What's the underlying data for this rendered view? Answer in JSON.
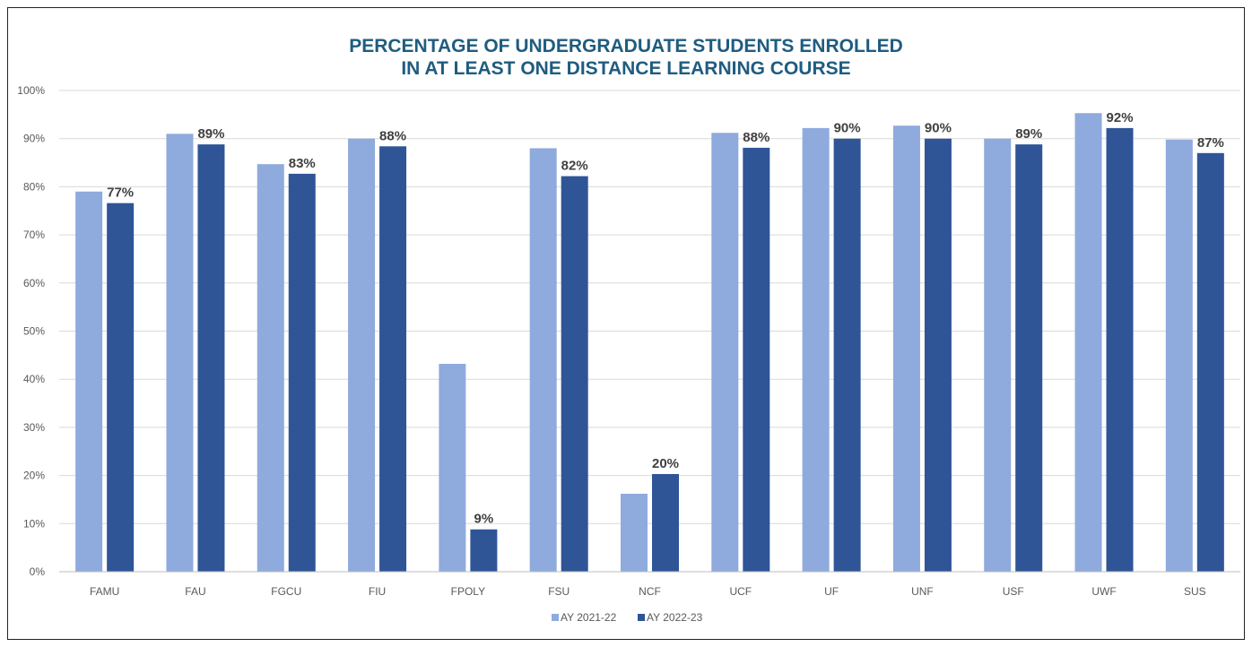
{
  "chart_data": {
    "type": "bar",
    "title_line1": "PERCENTAGE OF UNDERGRADUATE STUDENTS ENROLLED",
    "title_line2": "IN AT LEAST ONE DISTANCE LEARNING COURSE",
    "categories": [
      "FAMU",
      "FAU",
      "FGCU",
      "FIU",
      "FPOLY",
      "FSU",
      "NCF",
      "UCF",
      "UF",
      "UNF",
      "USF",
      "UWF",
      "SUS"
    ],
    "series": [
      {
        "name": "AY 2021-22",
        "color": "#8FAADC",
        "values": [
          79,
          91,
          84.7,
          90,
          43.2,
          88,
          16.2,
          91.2,
          92.2,
          92.7,
          90,
          95.3,
          89.8
        ]
      },
      {
        "name": "AY 2022-23",
        "color": "#2F5597",
        "values": [
          76.6,
          88.8,
          82.7,
          88.4,
          8.8,
          82.2,
          20.3,
          88.1,
          90,
          90,
          88.8,
          92.2,
          87
        ],
        "labels": [
          "77%",
          "89%",
          "83%",
          "88%",
          "9%",
          "82%",
          "20%",
          "88%",
          "90%",
          "90%",
          "89%",
          "92%",
          "87%"
        ]
      }
    ],
    "ylim": [
      0,
      100
    ],
    "yticks": [
      0,
      10,
      20,
      30,
      40,
      50,
      60,
      70,
      80,
      90,
      100
    ],
    "ytick_labels": [
      "0%",
      "10%",
      "20%",
      "30%",
      "40%",
      "50%",
      "60%",
      "70%",
      "80%",
      "90%",
      "100%"
    ],
    "grid": true,
    "legend_position": "bottom",
    "title_color": "#1F5C80"
  }
}
